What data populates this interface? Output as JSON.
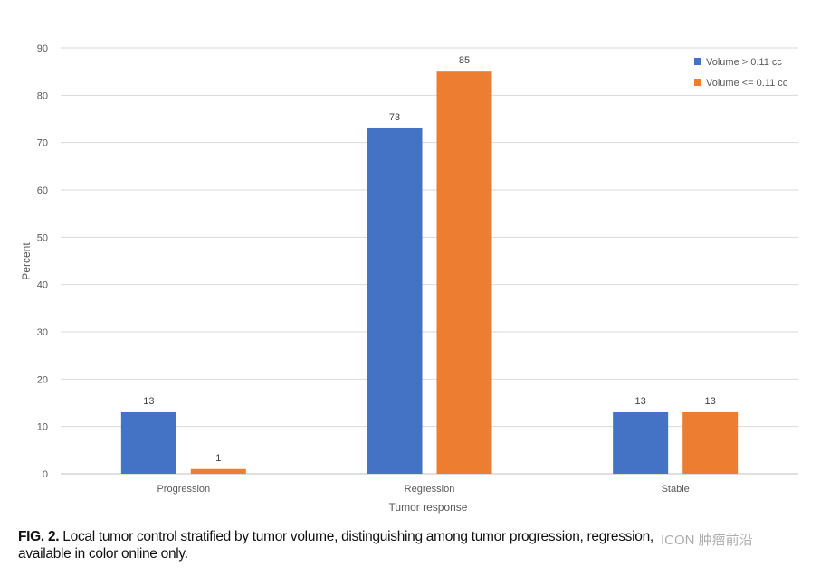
{
  "chart_data": {
    "type": "bar",
    "title": "",
    "xlabel": "Tumor response",
    "ylabel": "Percent",
    "ylim": [
      0,
      90
    ],
    "yticks": [
      0,
      10,
      20,
      30,
      40,
      50,
      60,
      70,
      80,
      90
    ],
    "grid": true,
    "legend_position": "top-right",
    "categories": [
      "Progression",
      "Regression",
      "Stable"
    ],
    "series": [
      {
        "name": "Volume > 0.11 cc",
        "color": "#4472c4",
        "values": [
          13,
          73,
          13
        ]
      },
      {
        "name": "Volume <= 0.11 cc",
        "color": "#ed7d31",
        "values": [
          1,
          85,
          13
        ]
      }
    ]
  },
  "caption": {
    "label": "FIG. 2.",
    "text": "Local tumor control stratified by tumor volume, distinguishing among tumor progression, regression,",
    "line2": "available in color online only."
  },
  "watermark": "ICON 肿瘤前沿"
}
